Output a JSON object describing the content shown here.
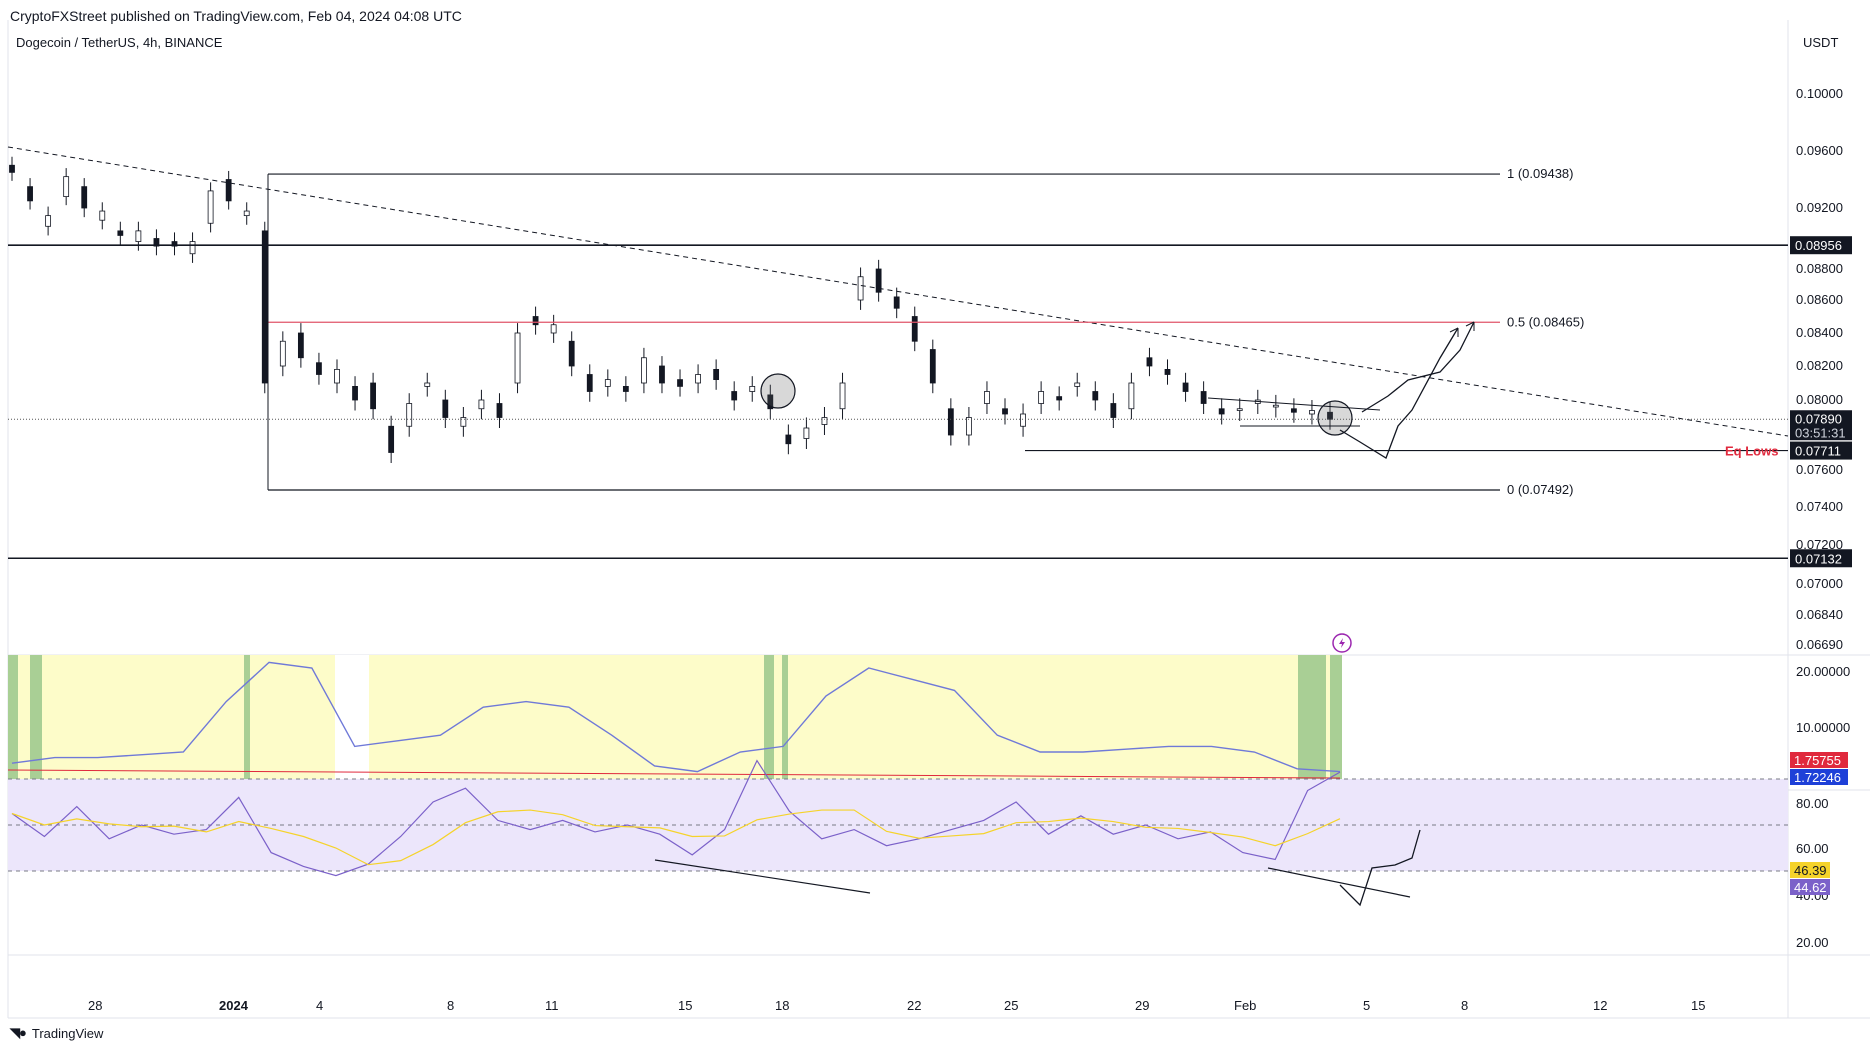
{
  "header": {
    "published_by": "CryptoFXStreet published on TradingView.com, Feb 04, 2024 04:08 UTC",
    "symbol": "Dogecoin / TetherUS, 4h, BINANCE",
    "currency": "USDT",
    "brand": "TradingView"
  },
  "chart_data": [
    {
      "type": "candlestick",
      "panel": "price",
      "y_scale": [
        0.0669,
        0.1
      ],
      "price_axis_ticks": [
        "0.10000",
        "0.09600",
        "0.09200",
        "0.08800",
        "0.08600",
        "0.08400",
        "0.08200",
        "0.08000",
        "0.07600",
        "0.07400",
        "0.07200",
        "0.07000",
        "0.06840",
        "0.06690"
      ],
      "time_axis_ticks": [
        "28",
        "2024",
        "4",
        "8",
        "11",
        "15",
        "18",
        "22",
        "25",
        "29",
        "Feb",
        "5",
        "8",
        "12",
        "15"
      ],
      "price_path": [
        [
          0.095,
          0.0945
        ],
        [
          0.0935,
          0.0925
        ],
        [
          0.0908,
          0.0915
        ],
        [
          0.0928,
          0.0942
        ],
        [
          0.0935,
          0.092
        ],
        [
          0.0912,
          0.0918
        ],
        [
          0.0905,
          0.0902
        ],
        [
          0.0898,
          0.0905
        ],
        [
          0.09,
          0.0895
        ],
        [
          0.0898,
          0.0895
        ],
        [
          0.089,
          0.0898
        ],
        [
          0.091,
          0.0932
        ],
        [
          0.094,
          0.0925
        ],
        [
          0.0915,
          0.0918
        ],
        [
          0.0905,
          0.081
        ],
        [
          0.082,
          0.0835
        ],
        [
          0.084,
          0.0825
        ],
        [
          0.0822,
          0.0815
        ],
        [
          0.081,
          0.0818
        ],
        [
          0.0808,
          0.08
        ],
        [
          0.081,
          0.0795
        ],
        [
          0.0785,
          0.077
        ],
        [
          0.0785,
          0.0798
        ],
        [
          0.0808,
          0.081
        ],
        [
          0.08,
          0.079
        ],
        [
          0.0785,
          0.079
        ],
        [
          0.0795,
          0.08
        ],
        [
          0.0798,
          0.079
        ],
        [
          0.081,
          0.084
        ],
        [
          0.085,
          0.0845
        ],
        [
          0.084,
          0.0845
        ],
        [
          0.0835,
          0.082
        ],
        [
          0.0815,
          0.0805
        ],
        [
          0.0808,
          0.0812
        ],
        [
          0.0808,
          0.0805
        ],
        [
          0.081,
          0.0825
        ],
        [
          0.082,
          0.081
        ],
        [
          0.0812,
          0.0808
        ],
        [
          0.081,
          0.0815
        ],
        [
          0.0818,
          0.0812
        ],
        [
          0.0805,
          0.08
        ],
        [
          0.0805,
          0.0808
        ],
        [
          0.0803,
          0.0795
        ],
        [
          0.078,
          0.0775
        ],
        [
          0.0778,
          0.0784
        ],
        [
          0.0786,
          0.079
        ],
        [
          0.0795,
          0.081
        ],
        [
          0.086,
          0.0875
        ],
        [
          0.088,
          0.0865
        ],
        [
          0.0862,
          0.0855
        ],
        [
          0.085,
          0.0835
        ],
        [
          0.083,
          0.081
        ],
        [
          0.0795,
          0.078
        ],
        [
          0.078,
          0.079
        ],
        [
          0.0798,
          0.0805
        ],
        [
          0.0795,
          0.0792
        ],
        [
          0.0785,
          0.0792
        ],
        [
          0.0798,
          0.0805
        ],
        [
          0.0802,
          0.08
        ],
        [
          0.0808,
          0.081
        ],
        [
          0.0805,
          0.08
        ],
        [
          0.0798,
          0.079
        ],
        [
          0.0795,
          0.081
        ],
        [
          0.0825,
          0.082
        ],
        [
          0.0818,
          0.0815
        ],
        [
          0.081,
          0.0805
        ],
        [
          0.0805,
          0.0798
        ],
        [
          0.0795,
          0.0792
        ],
        [
          0.0794,
          0.0795
        ],
        [
          0.0798,
          0.08
        ],
        [
          0.0796,
          0.0797
        ],
        [
          0.0795,
          0.0793
        ],
        [
          0.0792,
          0.0794
        ],
        [
          0.0793,
          0.0789
        ]
      ],
      "current_price": "0.07890",
      "countdown": "03:51:31",
      "levels": [
        {
          "label": "1 (0.09438)",
          "value": 0.09438,
          "color": "#131722"
        },
        {
          "label": "0.5 (0.08465)",
          "value": 0.08465,
          "color": "#e0556a"
        },
        {
          "label": "0 (0.07492)",
          "value": 0.07492,
          "color": "#131722"
        }
      ],
      "horizontal_lines": [
        {
          "tag": "0.08956",
          "value": 0.08956
        },
        {
          "tag": "0.07132",
          "value": 0.07132
        }
      ],
      "eq_lows": {
        "label": "Eq Lows",
        "tag": "0.07711",
        "value": 0.07711
      },
      "trendline": "descending, dashed"
    },
    {
      "type": "line",
      "panel": "adx",
      "y_ticks": [
        "20.00000",
        "10.00000"
      ],
      "value_tags": [
        {
          "value": "1.75755",
          "color": "#e0293d"
        },
        {
          "value": "1.72246",
          "color": "#1e40d8"
        }
      ],
      "series_values": [
        3,
        4,
        4,
        4.5,
        5,
        14,
        21,
        20,
        6,
        7,
        8,
        13,
        14,
        13,
        8,
        2.5,
        1.5,
        5,
        6,
        15,
        20,
        18,
        16,
        8,
        5,
        5,
        5.5,
        6,
        6,
        5,
        2,
        1.5
      ]
    },
    {
      "type": "line",
      "panel": "rsi",
      "y_ticks": [
        "80.00",
        "60.00",
        "40.00",
        "20.00"
      ],
      "bands": [
        70,
        50,
        30
      ],
      "value_tags": [
        {
          "value": "46.39",
          "color": "#f5d32a"
        },
        {
          "value": "44.62",
          "color": "#7b61c9"
        }
      ],
      "series_values": [
        55,
        45,
        58,
        44,
        50,
        46,
        48,
        62,
        38,
        32,
        28,
        33,
        45,
        60,
        66,
        52,
        48,
        52,
        47,
        50,
        46,
        37,
        48,
        78,
        56,
        44,
        48,
        41,
        44,
        48,
        52,
        60,
        46,
        54,
        46,
        50,
        44,
        47,
        38,
        35,
        65,
        73
      ]
    }
  ]
}
